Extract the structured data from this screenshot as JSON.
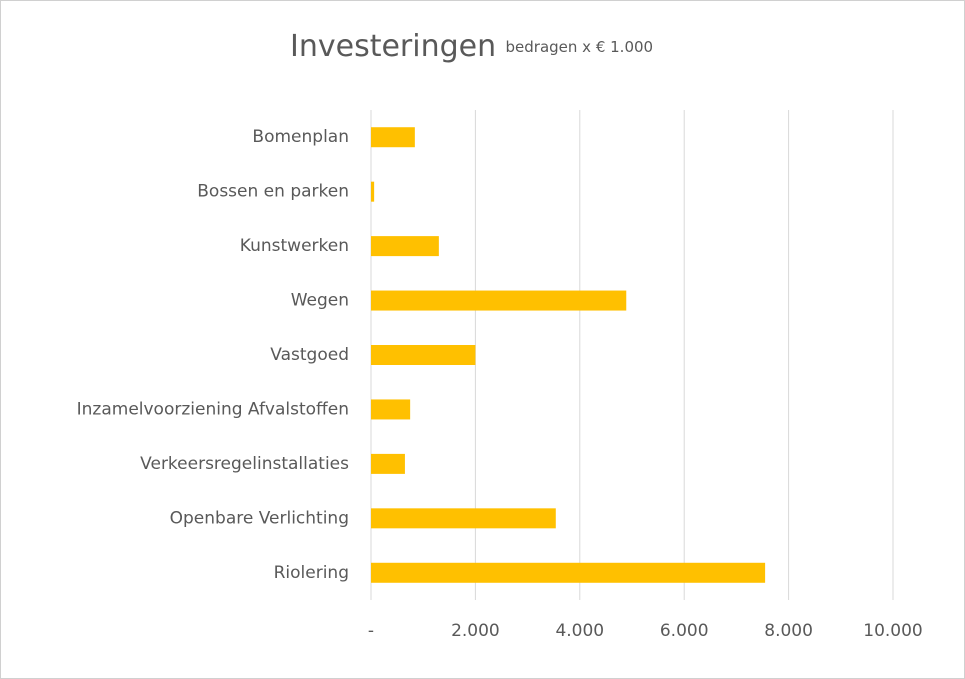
{
  "chart_data": {
    "type": "bar",
    "orientation": "horizontal",
    "title": "Investeringen",
    "subtitle": "bedragen x € 1.000",
    "categories": [
      "Bomenplan",
      "Bossen en parken",
      "Kunstwerken",
      "Wegen",
      "Vastgoed",
      "Inzamelvoorziening Afvalstoffen",
      "Verkeersregelinstallaties",
      "Openbare Verlichting",
      "Riolering"
    ],
    "values": [
      840,
      60,
      1300,
      4890,
      2000,
      750,
      650,
      3540,
      7550
    ],
    "color": "#ffc000",
    "xlim": [
      0,
      10000
    ],
    "xticks": [
      {
        "value": 0,
        "label": "-"
      },
      {
        "value": 2000,
        "label": "2.000"
      },
      {
        "value": 4000,
        "label": "4.000"
      },
      {
        "value": 6000,
        "label": "6.000"
      },
      {
        "value": 8000,
        "label": "8.000"
      },
      {
        "value": 10000,
        "label": "10.000"
      }
    ],
    "grid": true
  }
}
